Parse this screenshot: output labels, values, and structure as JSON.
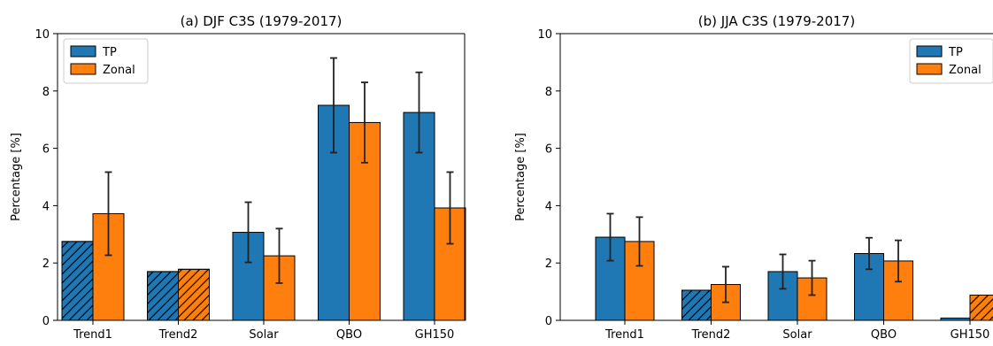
{
  "chart_data": [
    {
      "type": "bar",
      "title": "(a) DJF C3S (1979-2017)",
      "xlabel": "",
      "ylabel": "Percentage [%]",
      "ylim": [
        0,
        10
      ],
      "yticks": [
        0,
        2,
        4,
        6,
        8,
        10
      ],
      "categories": [
        "Trend1",
        "Trend2",
        "Solar",
        "QBO",
        "GH150"
      ],
      "legend_position": "top-left",
      "series": [
        {
          "name": "TP",
          "color": "#1f77b4",
          "values": [
            2.75,
            1.7,
            3.07,
            7.5,
            7.25
          ],
          "errors": [
            null,
            null,
            1.05,
            1.65,
            1.4
          ],
          "hatched": [
            true,
            true,
            false,
            false,
            false
          ]
        },
        {
          "name": "Zonal",
          "color": "#ff7f0e",
          "values": [
            3.72,
            1.78,
            2.25,
            6.9,
            3.92
          ],
          "errors": [
            1.45,
            null,
            0.95,
            1.4,
            1.25
          ],
          "hatched": [
            false,
            true,
            false,
            false,
            false
          ]
        }
      ]
    },
    {
      "type": "bar",
      "title": "(b) JJA C3S (1979-2017)",
      "xlabel": "",
      "ylabel": "Percentage [%]",
      "ylim": [
        0,
        10
      ],
      "yticks": [
        0,
        2,
        4,
        6,
        8,
        10
      ],
      "categories": [
        "Trend1",
        "Trend2",
        "Solar",
        "QBO",
        "GH150"
      ],
      "legend_position": "top-right",
      "series": [
        {
          "name": "TP",
          "color": "#1f77b4",
          "values": [
            2.9,
            1.05,
            1.7,
            2.33,
            0.08
          ],
          "errors": [
            0.82,
            null,
            0.6,
            0.55,
            null
          ],
          "hatched": [
            false,
            true,
            false,
            false,
            false
          ]
        },
        {
          "name": "Zonal",
          "color": "#ff7f0e",
          "values": [
            2.75,
            1.25,
            1.48,
            2.07,
            0.88
          ],
          "errors": [
            0.85,
            0.62,
            0.6,
            0.72,
            null
          ],
          "hatched": [
            false,
            false,
            false,
            false,
            true
          ]
        }
      ]
    }
  ]
}
